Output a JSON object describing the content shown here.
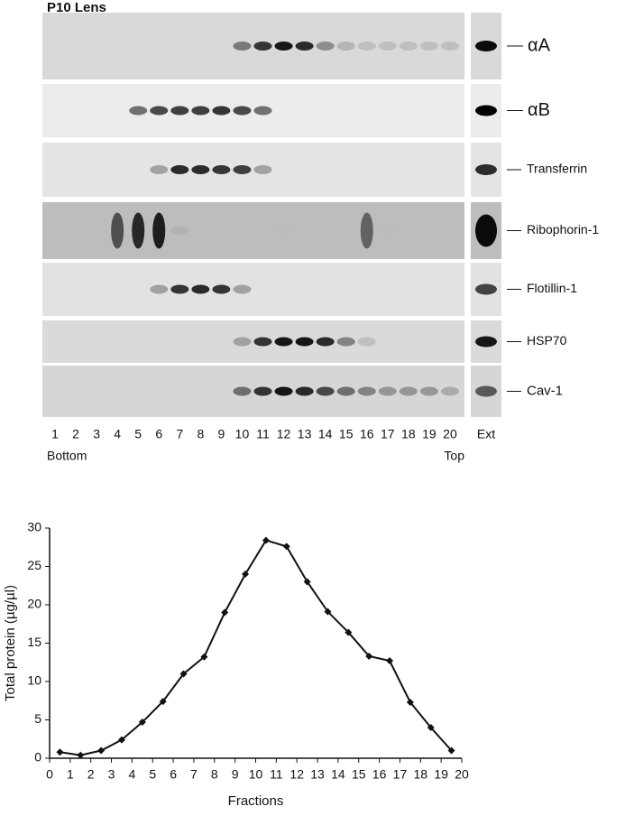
{
  "figure_title": "P10 Lens",
  "blot": {
    "proteins": [
      "αA",
      "αB",
      "Transferrin",
      "Ribophorin-1",
      "Flotillin-1",
      "HSP70",
      "Cav-1"
    ],
    "lanes": [
      "1",
      "2",
      "3",
      "4",
      "5",
      "6",
      "7",
      "8",
      "9",
      "10",
      "11",
      "12",
      "13",
      "14",
      "15",
      "16",
      "17",
      "18",
      "19",
      "20"
    ],
    "extract_label": "Ext",
    "bottom_label": "Bottom",
    "top_label": "Top"
  },
  "chart_data": {
    "type": "line",
    "x_label": "Fractions",
    "y_label": "Total protein (µg/µl)",
    "x": [
      0.5,
      1.5,
      2.5,
      3.5,
      4.5,
      5.5,
      6.5,
      7.5,
      8.5,
      9.5,
      10.5,
      11.5,
      12.5,
      13.5,
      14.5,
      15.5,
      16.5,
      17.5,
      18.5,
      19.5
    ],
    "values": [
      0.8,
      0.4,
      1.0,
      2.4,
      4.7,
      7.4,
      11.0,
      13.2,
      19.0,
      24.0,
      28.4,
      27.6,
      23.0,
      19.1,
      16.4,
      13.3,
      12.7,
      7.3,
      4.0,
      1.0
    ],
    "color": "#111111",
    "xlim": [
      0,
      20
    ],
    "ylim": [
      0,
      30
    ],
    "xticks": [
      0,
      1,
      2,
      3,
      4,
      5,
      6,
      7,
      8,
      9,
      10,
      11,
      12,
      13,
      14,
      15,
      16,
      17,
      18,
      19,
      20
    ],
    "yticks": [
      0,
      5,
      10,
      15,
      20,
      25,
      30
    ]
  }
}
